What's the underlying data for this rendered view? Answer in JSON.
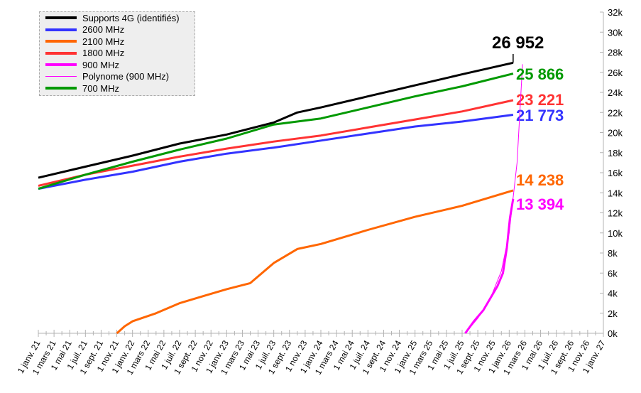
{
  "chart_data": {
    "type": "line",
    "title": "",
    "x_unit": "months since 1 janv. 21",
    "xlim": [
      0,
      72
    ],
    "ylim": [
      0,
      32000
    ],
    "y_ticks": [
      "0k",
      "2k",
      "4k",
      "6k",
      "8k",
      "10k",
      "12k",
      "14k",
      "16k",
      "18k",
      "20k",
      "22k",
      "24k",
      "26k",
      "28k",
      "30k",
      "32k"
    ],
    "x_ticks": [
      "1 janv. 21",
      "1 mars 21",
      "1 mai 21",
      "1 juil. 21",
      "1 sept. 21",
      "1 nov. 21",
      "1 janv. 22",
      "1 mars 22",
      "1 mai 22",
      "1 juil. 22",
      "1 sept. 22",
      "1 nov. 22",
      "1 janv. 23",
      "1 mars 23",
      "1 mai 23",
      "1 juil. 23",
      "1 sept. 23",
      "1 nov. 23",
      "1 janv. 24",
      "1 mars 24",
      "1 mai 24",
      "1 juil. 24",
      "1 sept. 24",
      "1 nov. 24",
      "1 janv. 25",
      "1 mars 25",
      "1 mai 25",
      "1 juil. 25",
      "1 sept. 25",
      "1 nov. 25",
      "1 janv. 26",
      "1 mars 26",
      "1 mai 26",
      "1 juil. 26",
      "1 sept. 26",
      "1 nov. 26",
      "1 janv. 27"
    ],
    "grid": false,
    "legend_position": "top-left",
    "series": [
      {
        "name": "Supports 4G (identifiés)",
        "color": "#000000",
        "width": 3,
        "end_label": "26 952",
        "x": [
          0,
          6,
          12,
          18,
          24,
          30,
          33,
          36,
          42,
          48,
          54,
          60.5
        ],
        "y": [
          15500,
          16600,
          17700,
          18900,
          19800,
          21000,
          22000,
          22500,
          23600,
          24700,
          25800,
          26952
        ]
      },
      {
        "name": "2600 MHz",
        "color": "#3333ff",
        "width": 3,
        "end_label": "21 773",
        "x": [
          0,
          6,
          12,
          18,
          24,
          30,
          36,
          42,
          48,
          54,
          60.5
        ],
        "y": [
          14400,
          15300,
          16100,
          17100,
          17900,
          18500,
          19200,
          19900,
          20600,
          21100,
          21773
        ]
      },
      {
        "name": "2100 MHz",
        "color": "#ff6600",
        "width": 3,
        "end_label": "14 238",
        "x": [
          10,
          11,
          12,
          15,
          18,
          21,
          24,
          27,
          30,
          33,
          36,
          42,
          48,
          54,
          60.5
        ],
        "y": [
          0,
          700,
          1200,
          2000,
          3000,
          3700,
          4400,
          5000,
          7000,
          8400,
          8900,
          10300,
          11600,
          12700,
          14238
        ]
      },
      {
        "name": "1800 MHz",
        "color": "#ff3333",
        "width": 3,
        "end_label": "23 221",
        "x": [
          0,
          6,
          12,
          18,
          24,
          30,
          36,
          42,
          48,
          54,
          60.5
        ],
        "y": [
          14700,
          15800,
          16700,
          17600,
          18400,
          19100,
          19700,
          20500,
          21300,
          22100,
          23221
        ]
      },
      {
        "name": "900 MHz",
        "color": "#ff00ff",
        "width": 3,
        "end_label": "13 394",
        "x": [
          54.4,
          55.5,
          56.7,
          57.6,
          58.5,
          59.2,
          59.7,
          60.1,
          60.5
        ],
        "y": [
          0,
          1200,
          2300,
          3500,
          4700,
          6000,
          8500,
          11500,
          13394
        ]
      },
      {
        "name": "Polynome (900 MHz)",
        "color": "#ff00ff",
        "width": 1,
        "x": [
          54.4,
          56,
          57.5,
          59,
          60,
          61,
          61.7
        ],
        "y": [
          0,
          1500,
          3300,
          6200,
          10000,
          17000,
          26800
        ]
      },
      {
        "name": "700 MHz",
        "color": "#009900",
        "width": 3,
        "end_label": "25 866",
        "x": [
          0,
          6,
          12,
          18,
          24,
          30,
          36,
          42,
          48,
          54,
          60.5
        ],
        "y": [
          14400,
          15800,
          17100,
          18300,
          19400,
          20800,
          21400,
          22500,
          23600,
          24600,
          25866
        ]
      }
    ]
  }
}
